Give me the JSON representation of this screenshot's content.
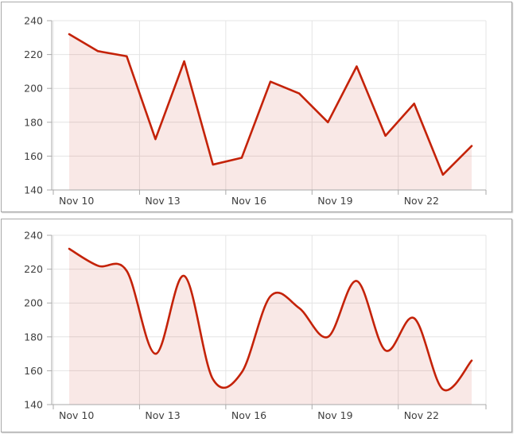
{
  "chart_data": [
    {
      "type": "area",
      "line_style": "straight",
      "title": "",
      "xlabel": "",
      "ylabel": "",
      "x": [
        "Nov 10",
        "Nov 11",
        "Nov 12",
        "Nov 13",
        "Nov 14",
        "Nov 15",
        "Nov 16",
        "Nov 17",
        "Nov 18",
        "Nov 19",
        "Nov 20",
        "Nov 21",
        "Nov 22",
        "Nov 23",
        "Nov 24"
      ],
      "values": [
        232,
        222,
        219,
        170,
        216,
        155,
        159,
        204,
        197,
        180,
        213,
        172,
        191,
        149,
        166
      ],
      "x_tick_labels": [
        "Nov 10",
        "Nov 13",
        "Nov 16",
        "Nov 19",
        "Nov 22"
      ],
      "x_tick_indices": [
        0,
        3,
        6,
        9,
        12
      ],
      "y_ticks": [
        140,
        160,
        180,
        200,
        220,
        240
      ],
      "ylim": [
        140,
        240
      ],
      "grid": true,
      "legend": false,
      "colors": {
        "line": "#c42208",
        "fill": "rgba(198,33,13,0.10)",
        "grid": "#e4e4e4",
        "axis": "#a9a9a9",
        "label": "#3f3f3f"
      }
    },
    {
      "type": "area",
      "line_style": "smooth",
      "title": "",
      "xlabel": "",
      "ylabel": "",
      "x": [
        "Nov 10",
        "Nov 11",
        "Nov 12",
        "Nov 13",
        "Nov 14",
        "Nov 15",
        "Nov 16",
        "Nov 17",
        "Nov 18",
        "Nov 19",
        "Nov 20",
        "Nov 21",
        "Nov 22",
        "Nov 23",
        "Nov 24"
      ],
      "values": [
        232,
        222,
        219,
        170,
        216,
        155,
        159,
        204,
        197,
        180,
        213,
        172,
        191,
        149,
        166
      ],
      "x_tick_labels": [
        "Nov 10",
        "Nov 13",
        "Nov 16",
        "Nov 19",
        "Nov 22"
      ],
      "x_tick_indices": [
        0,
        3,
        6,
        9,
        12
      ],
      "y_ticks": [
        140,
        160,
        180,
        200,
        220,
        240
      ],
      "ylim": [
        140,
        240
      ],
      "grid": true,
      "legend": false,
      "colors": {
        "line": "#c42208",
        "fill": "rgba(198,33,13,0.10)",
        "grid": "#e4e4e4",
        "axis": "#a9a9a9",
        "label": "#3f3f3f"
      }
    }
  ]
}
